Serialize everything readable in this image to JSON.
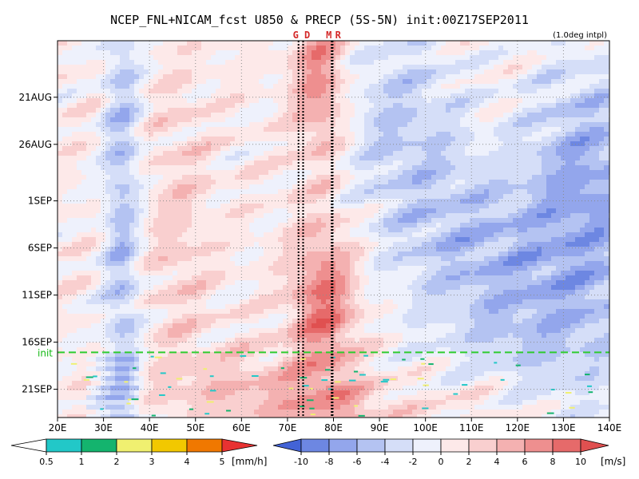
{
  "chart_data": {
    "type": "heatmap",
    "title": "NCEP_FNL+NICAM_fcst U850 & PRECP (5S-5N) init:00Z17SEP2011",
    "subtitle": "(1.0deg intpl)",
    "x_ticks": [
      "20E",
      "30E",
      "40E",
      "50E",
      "60E",
      "70E",
      "80E",
      "90E",
      "100E",
      "110E",
      "120E",
      "130E",
      "140E"
    ],
    "x_values": [
      20,
      30,
      40,
      50,
      60,
      70,
      80,
      90,
      100,
      110,
      120,
      130,
      140
    ],
    "xlim": [
      20,
      140
    ],
    "y_ticks": [
      "21AUG",
      "26AUG",
      "1SEP",
      "6SEP",
      "11SEP",
      "16SEP",
      "21SEP"
    ],
    "y_days": [
      4,
      9,
      15,
      20,
      25,
      30,
      35
    ],
    "ylim_days": [
      -2,
      38
    ],
    "grid": true,
    "init_label": "init",
    "init_day": 31,
    "markers": [
      {
        "label": "G",
        "lon": 72.4
      },
      {
        "label": "D",
        "lon": 73.4
      },
      {
        "label": "M",
        "lon": 79.6
      },
      {
        "label": "R",
        "lon": 79.8
      }
    ],
    "field": {
      "name": "U850",
      "units": "[m/s]",
      "levels": [
        "-10",
        "-8",
        "-6",
        "-4",
        "-2",
        "0",
        "2",
        "4",
        "6",
        "8",
        "10"
      ],
      "colors": [
        "#4363d6",
        "#6d87e2",
        "#93a6ec",
        "#b4c3f2",
        "#d5def8",
        "#eef1fc",
        "#fde9e9",
        "#f9cfcf",
        "#f4b1b1",
        "#ee8f8f",
        "#e66a6a",
        "#e05050"
      ]
    },
    "precip": {
      "name": "PRECP",
      "units": "[mm/h]",
      "levels": [
        "0.5",
        "1",
        "2",
        "3",
        "4",
        "5"
      ],
      "colors": [
        "#22c8c8",
        "#14b46e",
        "#f0f070",
        "#f2c800",
        "#f07800",
        "#e83232"
      ]
    }
  }
}
